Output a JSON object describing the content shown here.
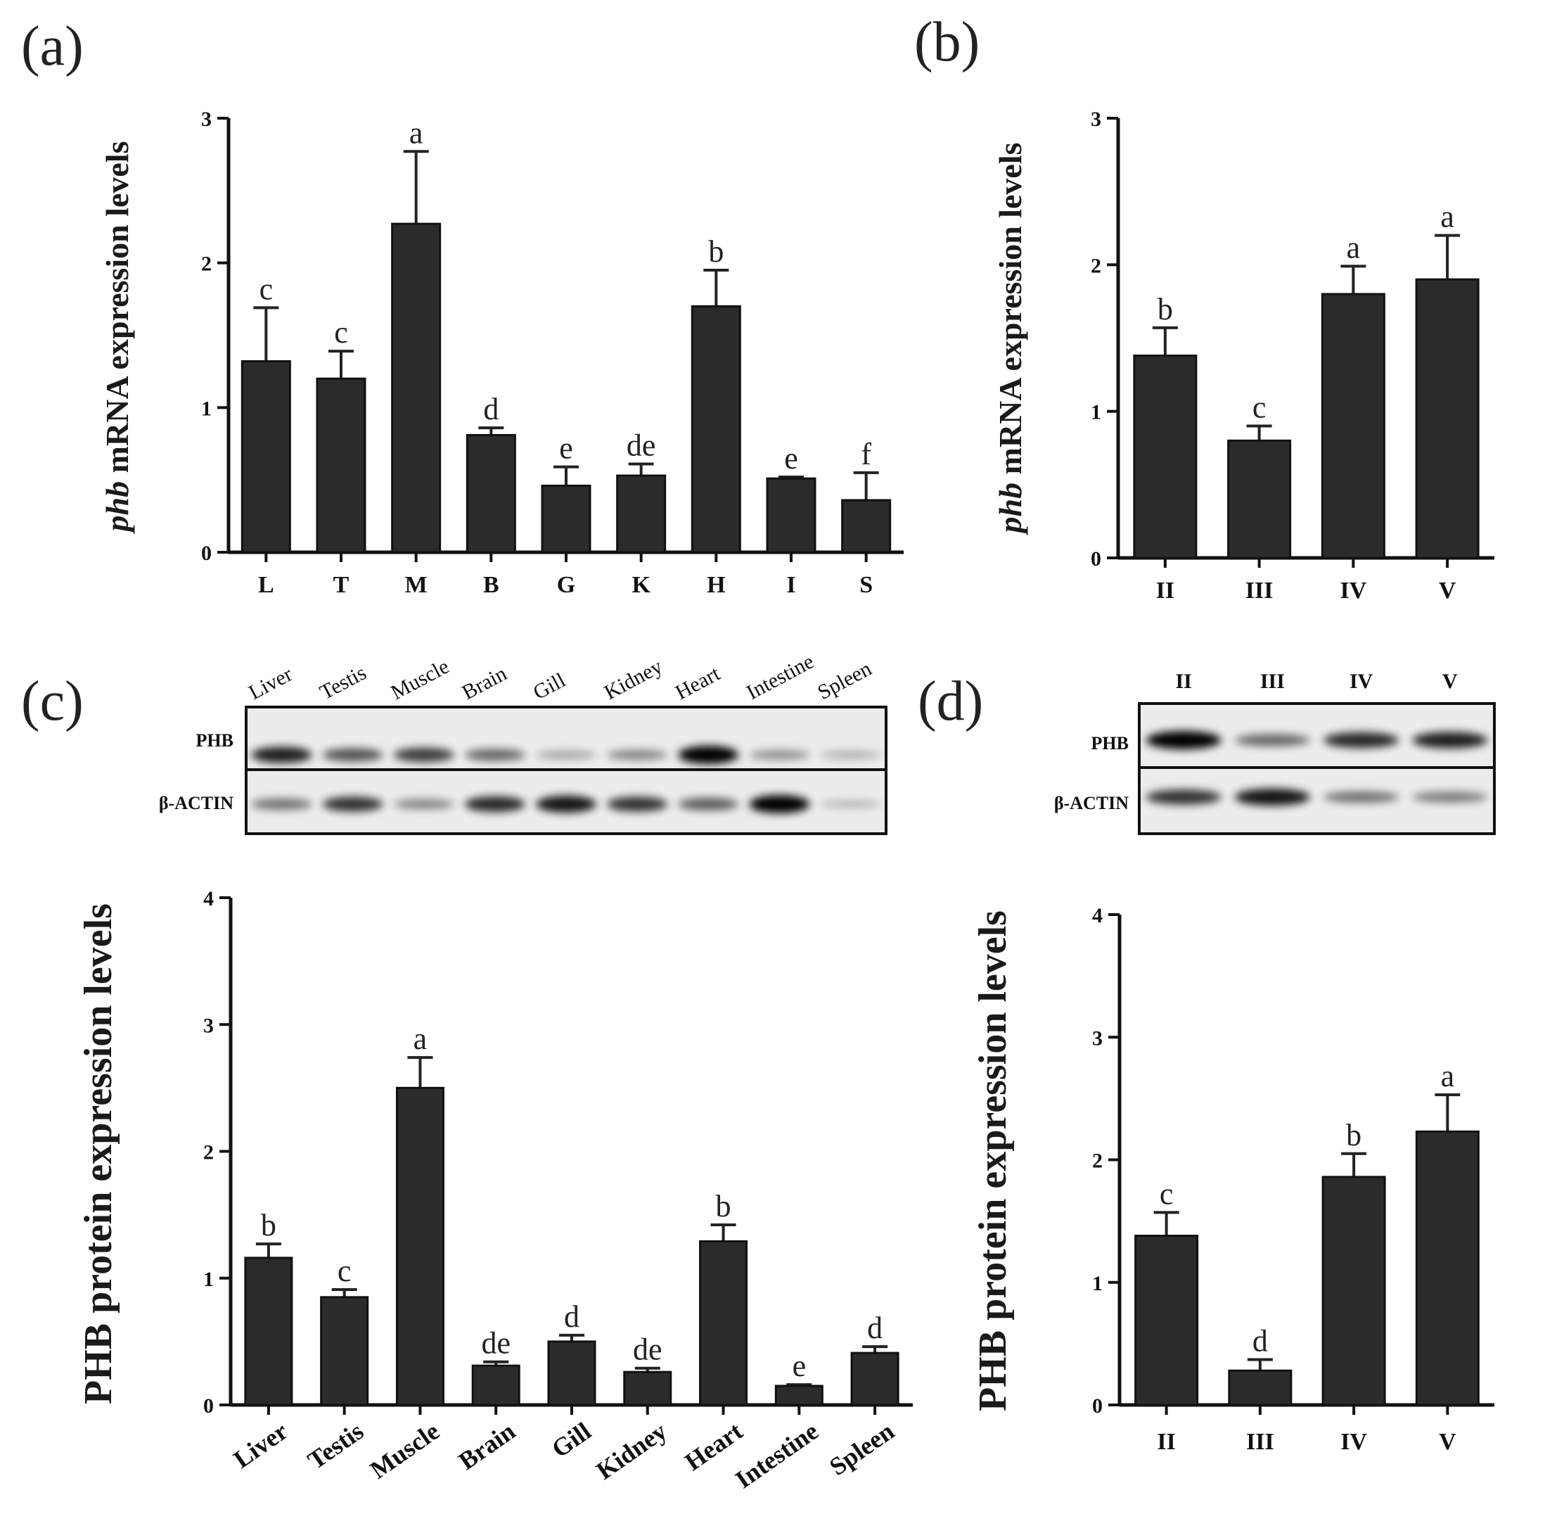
{
  "panels": {
    "a": "(a)",
    "b": "(b)",
    "c": "(c)",
    "d": "(d)"
  },
  "blots": {
    "c": {
      "lanes": [
        "Liver",
        "Testis",
        "Muscle",
        "Brain",
        "Gill",
        "Kidney",
        "Heart",
        "Intestine",
        "Spleen"
      ],
      "rows": [
        "PHB",
        "β-ACTIN"
      ]
    },
    "d": {
      "lanes": [
        "II",
        "III",
        "IV",
        "V"
      ],
      "rows": [
        "PHB",
        "β-ACTIN"
      ]
    }
  },
  "chart_data": [
    {
      "id": "a",
      "type": "bar",
      "ylabel_italic": "phb",
      "ylabel_rest": " mRNA expression levels",
      "categories": [
        "L",
        "T",
        "M",
        "B",
        "G",
        "K",
        "H",
        "I",
        "S"
      ],
      "values": [
        1.32,
        1.2,
        2.27,
        0.81,
        0.46,
        0.53,
        1.7,
        0.51,
        0.36
      ],
      "errors": [
        0.37,
        0.19,
        0.5,
        0.05,
        0.13,
        0.08,
        0.25,
        0.01,
        0.19
      ],
      "letters": [
        "c",
        "c",
        "a",
        "d",
        "e",
        "de",
        "b",
        "e",
        "f"
      ],
      "ylim": [
        0,
        3
      ],
      "yticks": [
        "0",
        "1",
        "2",
        "3"
      ]
    },
    {
      "id": "b",
      "type": "bar",
      "ylabel_italic": "phb",
      "ylabel_rest": " mRNA expression levels",
      "categories": [
        "II",
        "III",
        "IV",
        "V"
      ],
      "values": [
        1.38,
        0.8,
        1.8,
        1.9
      ],
      "errors": [
        0.19,
        0.1,
        0.19,
        0.3
      ],
      "letters": [
        "b",
        "c",
        "a",
        "a"
      ],
      "ylim": [
        0,
        3
      ],
      "yticks": [
        "0",
        "1",
        "2",
        "3"
      ]
    },
    {
      "id": "c",
      "type": "bar",
      "ylabel": "PHB protein expression levels",
      "categories": [
        "Liver",
        "Testis",
        "Muscle",
        "Brain",
        "Gill",
        "Kidney",
        "Heart",
        "Intestine",
        "Spleen"
      ],
      "values": [
        1.16,
        0.85,
        2.5,
        0.31,
        0.5,
        0.26,
        1.29,
        0.15,
        0.41
      ],
      "errors": [
        0.11,
        0.06,
        0.24,
        0.03,
        0.05,
        0.03,
        0.13,
        0.01,
        0.05
      ],
      "letters": [
        "b",
        "c",
        "a",
        "de",
        "d",
        "de",
        "b",
        "e",
        "d"
      ],
      "ylim": [
        0,
        4
      ],
      "yticks": [
        "0",
        "1",
        "2",
        "3",
        "4"
      ]
    },
    {
      "id": "d",
      "type": "bar",
      "ylabel": "PHB protein expression levels",
      "categories": [
        "II",
        "III",
        "IV",
        "V"
      ],
      "values": [
        1.38,
        0.28,
        1.86,
        2.23
      ],
      "errors": [
        0.19,
        0.09,
        0.19,
        0.3
      ],
      "letters": [
        "c",
        "d",
        "b",
        "a"
      ],
      "ylim": [
        0,
        4
      ],
      "yticks": [
        "0",
        "1",
        "2",
        "3",
        "4"
      ]
    }
  ]
}
